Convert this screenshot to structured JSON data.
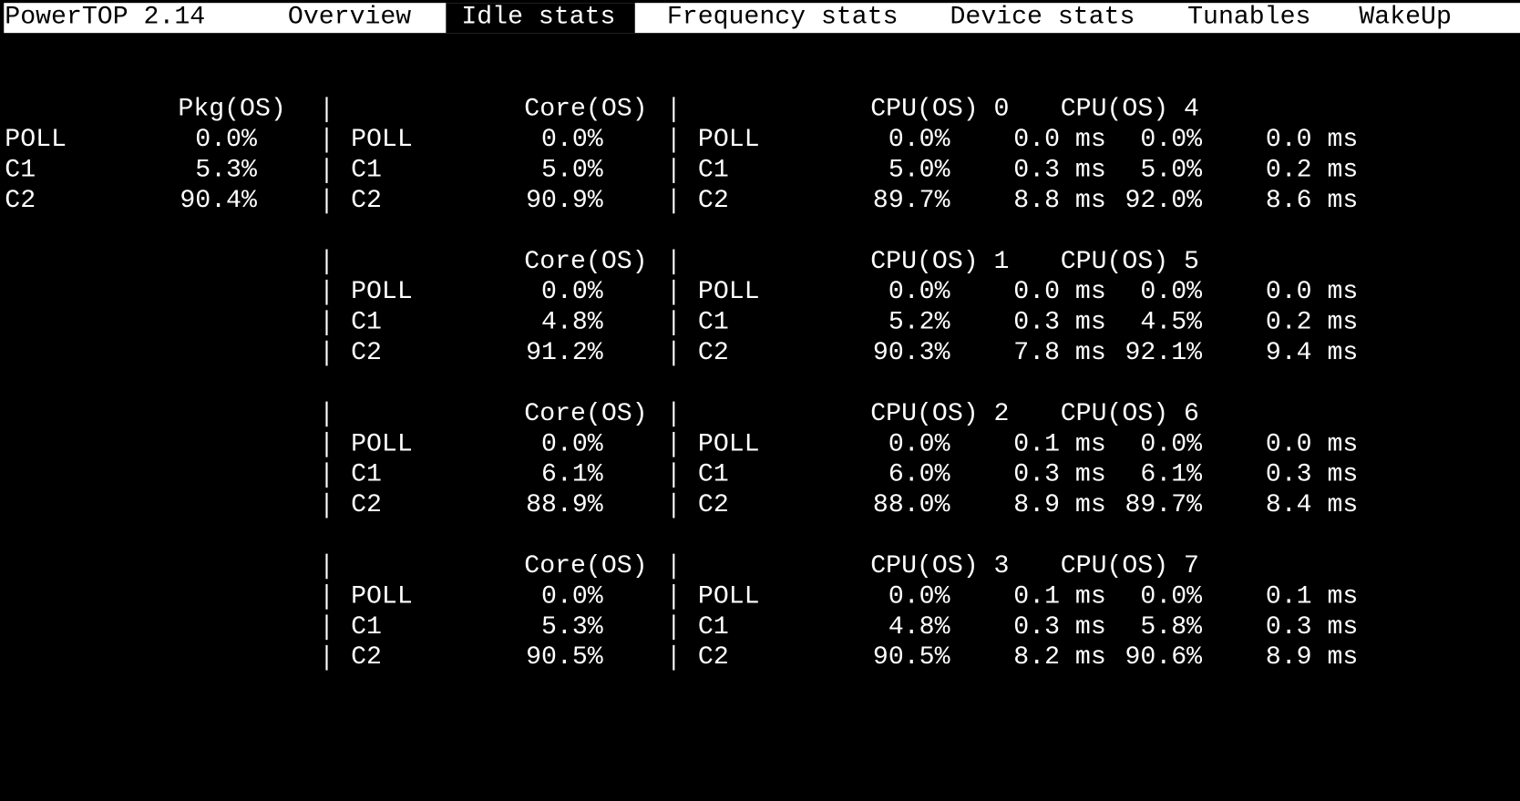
{
  "header": {
    "title": "PowerTOP 2.14",
    "tabs": [
      "Overview",
      "Idle stats",
      "Frequency stats",
      "Device stats",
      "Tunables",
      "WakeUp"
    ],
    "selected_tab": "Idle stats"
  },
  "package": {
    "header": "Pkg(OS)",
    "rows": [
      {
        "state": "POLL",
        "value": "0.0%"
      },
      {
        "state": "C1",
        "value": "5.3%"
      },
      {
        "state": "C2",
        "value": "90.4%"
      }
    ]
  },
  "core_blocks": [
    {
      "core_header": "Core(OS)",
      "cpu_headers": [
        "CPU(OS) 0",
        "CPU(OS) 4"
      ],
      "rows": [
        {
          "state": "POLL",
          "core": "0.0%",
          "cpu_state": "POLL",
          "cpu_a": [
            "0.0%",
            "0.0 ms"
          ],
          "cpu_b": [
            "0.0%",
            "0.0 ms"
          ]
        },
        {
          "state": "C1",
          "core": "5.0%",
          "cpu_state": "C1",
          "cpu_a": [
            "5.0%",
            "0.3 ms"
          ],
          "cpu_b": [
            "5.0%",
            "0.2 ms"
          ]
        },
        {
          "state": "C2",
          "core": "90.9%",
          "cpu_state": "C2",
          "cpu_a": [
            "89.7%",
            "8.8 ms"
          ],
          "cpu_b": [
            "92.0%",
            "8.6 ms"
          ]
        }
      ]
    },
    {
      "core_header": "Core(OS)",
      "cpu_headers": [
        "CPU(OS) 1",
        "CPU(OS) 5"
      ],
      "rows": [
        {
          "state": "POLL",
          "core": "0.0%",
          "cpu_state": "POLL",
          "cpu_a": [
            "0.0%",
            "0.0 ms"
          ],
          "cpu_b": [
            "0.0%",
            "0.0 ms"
          ]
        },
        {
          "state": "C1",
          "core": "4.8%",
          "cpu_state": "C1",
          "cpu_a": [
            "5.2%",
            "0.3 ms"
          ],
          "cpu_b": [
            "4.5%",
            "0.2 ms"
          ]
        },
        {
          "state": "C2",
          "core": "91.2%",
          "cpu_state": "C2",
          "cpu_a": [
            "90.3%",
            "7.8 ms"
          ],
          "cpu_b": [
            "92.1%",
            "9.4 ms"
          ]
        }
      ]
    },
    {
      "core_header": "Core(OS)",
      "cpu_headers": [
        "CPU(OS) 2",
        "CPU(OS) 6"
      ],
      "rows": [
        {
          "state": "POLL",
          "core": "0.0%",
          "cpu_state": "POLL",
          "cpu_a": [
            "0.0%",
            "0.1 ms"
          ],
          "cpu_b": [
            "0.0%",
            "0.0 ms"
          ]
        },
        {
          "state": "C1",
          "core": "6.1%",
          "cpu_state": "C1",
          "cpu_a": [
            "6.0%",
            "0.3 ms"
          ],
          "cpu_b": [
            "6.1%",
            "0.3 ms"
          ]
        },
        {
          "state": "C2",
          "core": "88.9%",
          "cpu_state": "C2",
          "cpu_a": [
            "88.0%",
            "8.9 ms"
          ],
          "cpu_b": [
            "89.7%",
            "8.4 ms"
          ]
        }
      ]
    },
    {
      "core_header": "Core(OS)",
      "cpu_headers": [
        "CPU(OS) 3",
        "CPU(OS) 7"
      ],
      "rows": [
        {
          "state": "POLL",
          "core": "0.0%",
          "cpu_state": "POLL",
          "cpu_a": [
            "0.0%",
            "0.1 ms"
          ],
          "cpu_b": [
            "0.0%",
            "0.1 ms"
          ]
        },
        {
          "state": "C1",
          "core": "5.3%",
          "cpu_state": "C1",
          "cpu_a": [
            "4.8%",
            "0.3 ms"
          ],
          "cpu_b": [
            "5.8%",
            "0.3 ms"
          ]
        },
        {
          "state": "C2",
          "core": "90.5%",
          "cpu_state": "C2",
          "cpu_a": [
            "90.5%",
            "8.2 ms"
          ],
          "cpu_b": [
            "90.6%",
            "8.9 ms"
          ]
        }
      ]
    }
  ]
}
